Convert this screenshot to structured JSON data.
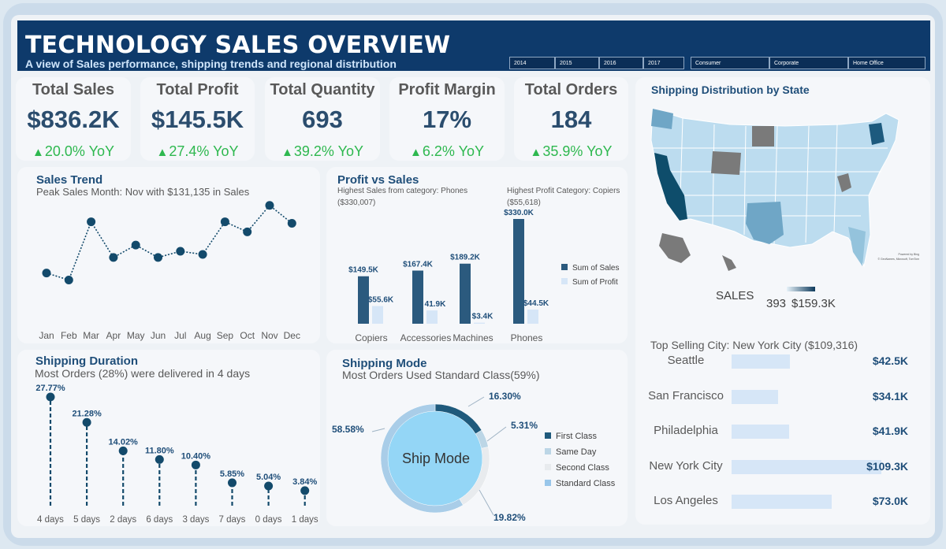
{
  "header": {
    "title": "TECHNOLOGY SALES OVERVIEW",
    "subtitle": "A view of Sales performance, shipping trends and regional distribution",
    "years": [
      "2014",
      "2015",
      "2016",
      "2017"
    ],
    "segments": [
      "Consumer",
      "Corporate",
      "Home Office"
    ]
  },
  "kpis": [
    {
      "label": "Total Sales",
      "value": "$836.2K",
      "yoy": "20.0% YoY"
    },
    {
      "label": "Total Profit",
      "value": "$145.5K",
      "yoy": "27.4% YoY"
    },
    {
      "label": "Total Quantity",
      "value": "693",
      "yoy": "39.2% YoY"
    },
    {
      "label": "Profit Margin",
      "value": "17%",
      "yoy": "6.2% YoY"
    },
    {
      "label": "Total Orders",
      "value": "184",
      "yoy": "35.9% YoY"
    }
  ],
  "colors": {
    "accent": "#1f4e79",
    "up": "#2eb84f",
    "dark_bar": "#2b5a7e",
    "light_bar": "#d6e6f7"
  },
  "sales_trend": {
    "title": "Sales Trend",
    "subtitle": "Peak Sales Month: Nov with $131,135 in Sales"
  },
  "profit_vs_sales": {
    "title": "Profit vs Sales",
    "note_left": "Highest Sales from category: Phones ($330,007)",
    "note_right": "Highest Profit Category: Copiers ($55,618)"
  },
  "shipping_duration": {
    "title": "Shipping Duration",
    "subtitle": "Most Orders (28%) were delivered in 4 days"
  },
  "shipping_mode": {
    "title": "Shipping Mode",
    "subtitle": "Most Orders Used Standard Class(59%)",
    "center_label": "Ship Mode",
    "labels": {
      "first": "16.30%",
      "same": "5.31%",
      "second": "19.82%",
      "standard": "58.58%"
    },
    "legend": [
      "First Class",
      "Same Day",
      "Second Class",
      "Standard Class"
    ]
  },
  "map": {
    "title": "Shipping Distribution by State",
    "legend_title": "SALES",
    "legend_min": "393",
    "legend_max": "$159.3K",
    "attribution_1": "Powered by Bing",
    "attribution_2": "© GeoNames, Microsoft, TomTom"
  },
  "top_cities": {
    "subtitle": "Top Selling City: New York City ($109,316)",
    "cities": [
      {
        "name": "Seattle",
        "value": 42.5,
        "label": "$42.5K"
      },
      {
        "name": "San Francisco",
        "value": 34.1,
        "label": "$34.1K"
      },
      {
        "name": "Philadelphia",
        "value": 41.9,
        "label": "$41.9K"
      },
      {
        "name": "New York City",
        "value": 109.3,
        "label": "$109.3K"
      },
      {
        "name": "Los Angeles",
        "value": 73.0,
        "label": "$73.0K"
      }
    ]
  },
  "chart_data": [
    {
      "type": "line",
      "title": "Sales Trend",
      "categories": [
        "Jan",
        "Feb",
        "Mar",
        "Apr",
        "May",
        "Jun",
        "Jul",
        "Aug",
        "Sep",
        "Oct",
        "Nov",
        "Dec"
      ],
      "values": [
        44000,
        35000,
        110000,
        64000,
        80000,
        64000,
        72000,
        68000,
        110000,
        97000,
        131135,
        108000
      ],
      "ylim": [
        0,
        140000
      ]
    },
    {
      "type": "bar",
      "title": "Profit vs Sales",
      "categories": [
        "Copiers",
        "Accessories",
        "Machines",
        "Phones"
      ],
      "series": [
        {
          "name": "Sum of Sales",
          "values": [
            149.5,
            167.4,
            189.2,
            330.0
          ],
          "labels": [
            "$149.5K",
            "$167.4K",
            "$189.2K",
            "$330.0K"
          ]
        },
        {
          "name": "Sum of Profit",
          "values": [
            55.6,
            41.9,
            3.4,
            44.5
          ],
          "labels": [
            "$55.6K",
            "41.9K",
            "$3.4K",
            "$44.5K"
          ]
        }
      ]
    },
    {
      "type": "lollipop",
      "title": "Shipping Duration",
      "categories": [
        "4 days",
        "5 days",
        "2 days",
        "6 days",
        "3 days",
        "7 days",
        "0 days",
        "1 days"
      ],
      "values": [
        27.77,
        21.28,
        14.02,
        11.8,
        10.4,
        5.85,
        5.04,
        3.84
      ],
      "labels": [
        "27.77%",
        "21.28%",
        "14.02%",
        "11.80%",
        "10.40%",
        "5.85%",
        "5.04%",
        "3.84%"
      ]
    },
    {
      "type": "pie",
      "title": "Shipping Mode",
      "categories": [
        "First Class",
        "Same Day",
        "Second Class",
        "Standard Class"
      ],
      "values": [
        16.3,
        5.31,
        19.82,
        58.58
      ]
    }
  ]
}
